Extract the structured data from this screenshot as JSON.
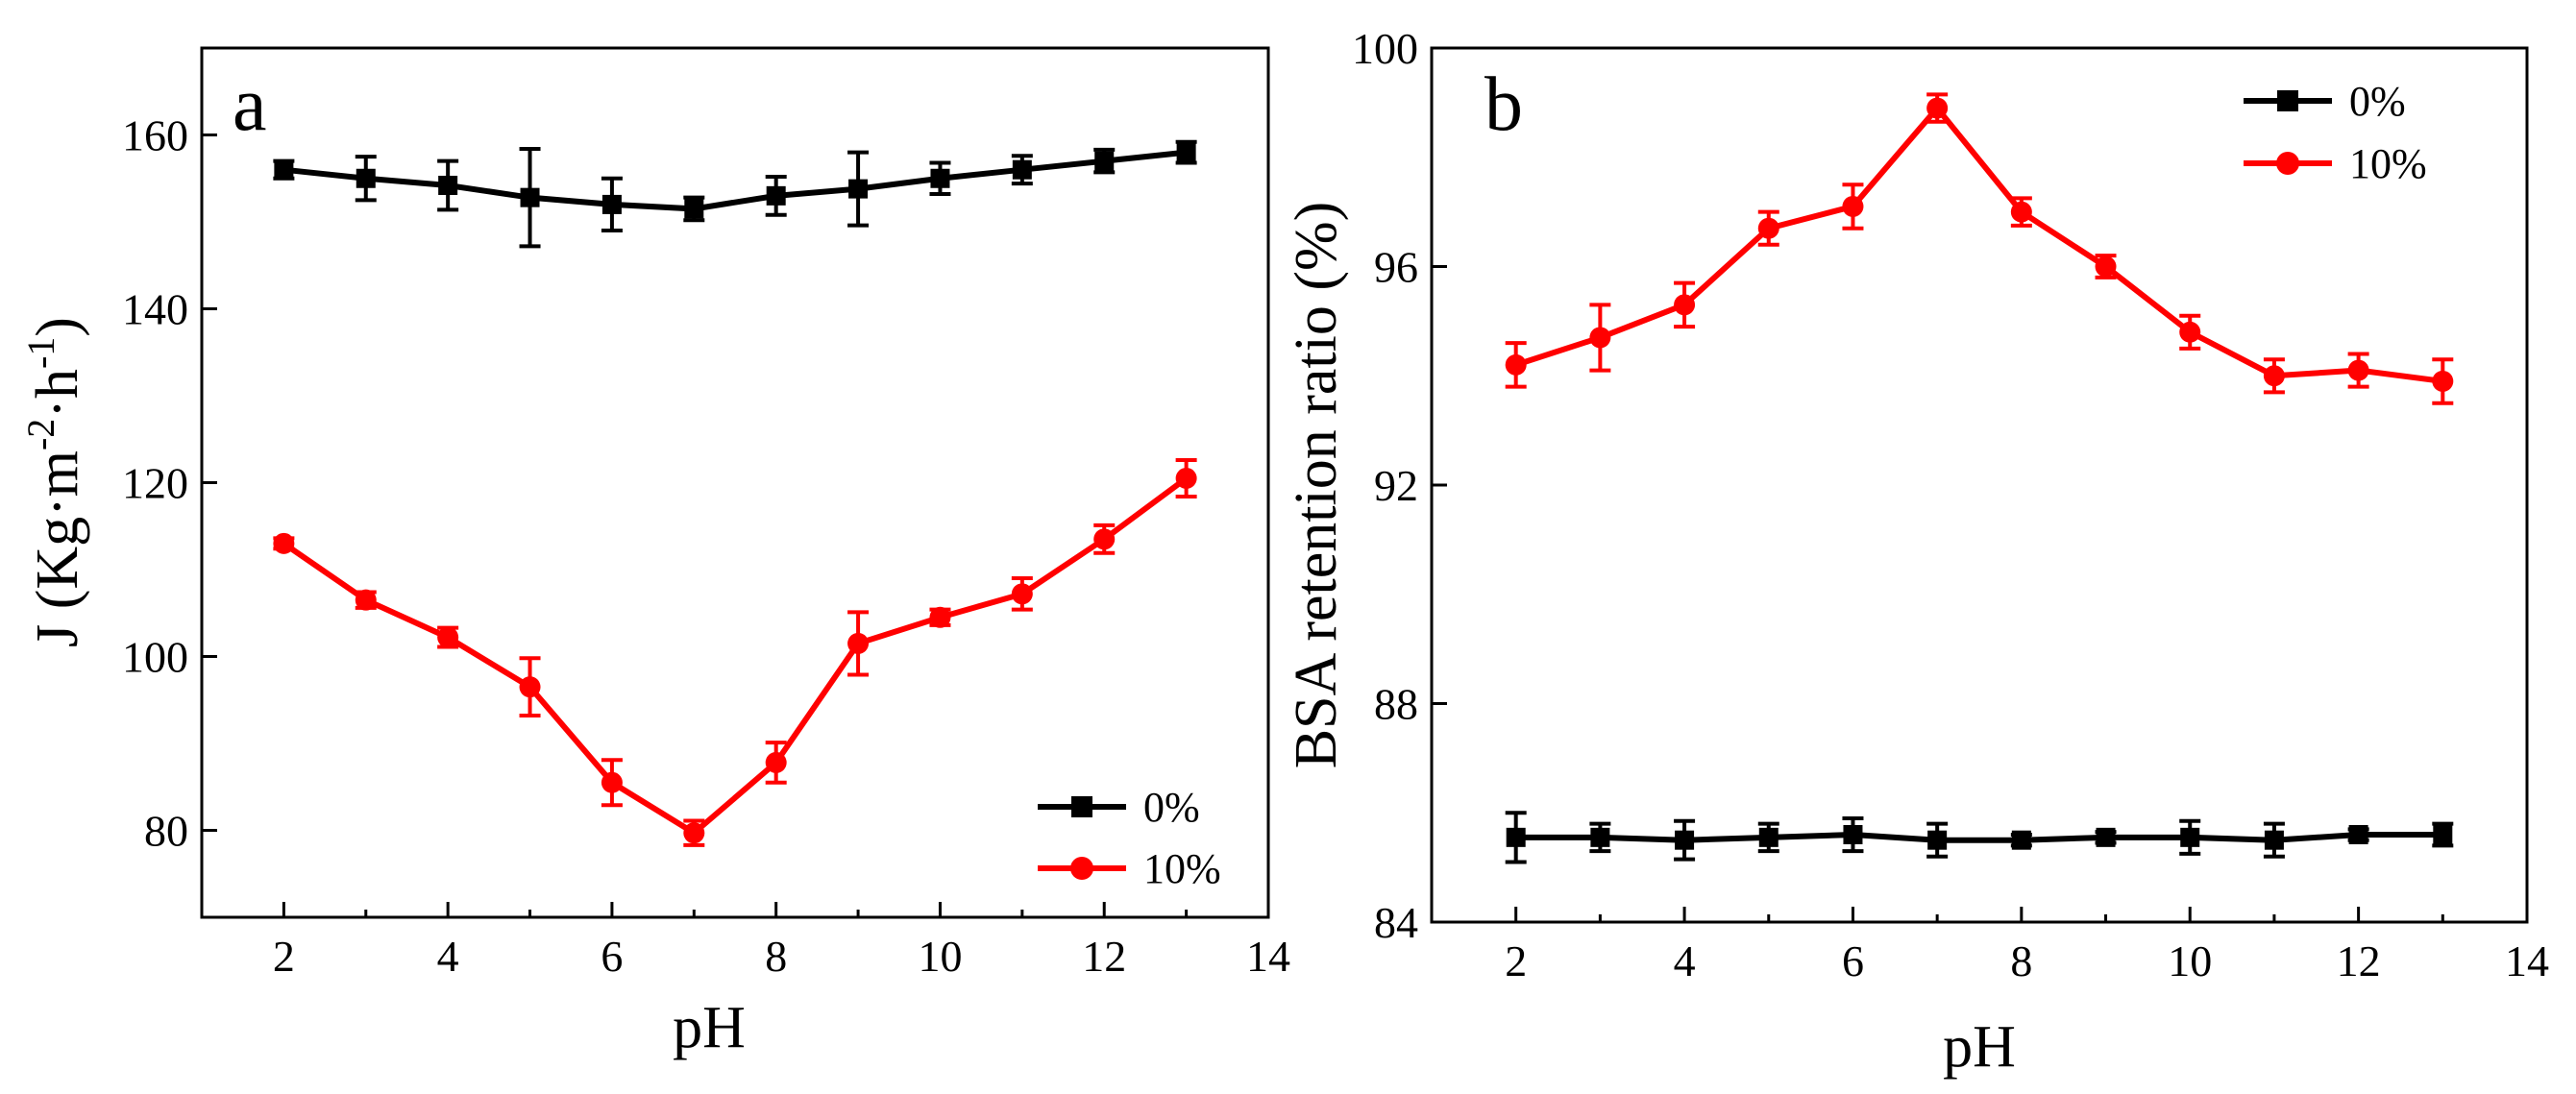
{
  "colors": {
    "series_0": "#000000",
    "series_10": "#ff0000"
  },
  "chart_data": [
    {
      "type": "line",
      "panel_label": "a",
      "xlabel": "pH",
      "ylabel_main": "J (Kg·m",
      "ylabel_sup1": "-2",
      "ylabel_mid": "·h",
      "ylabel_sup2": "-1",
      "ylabel_end": ")",
      "xlim": [
        1,
        14
      ],
      "ylim": [
        70,
        170
      ],
      "xticks": [
        2,
        4,
        6,
        8,
        10,
        12,
        14
      ],
      "yticks": [
        80,
        100,
        120,
        140,
        160
      ],
      "legend_position": "bottom-right",
      "series": [
        {
          "name": "0%",
          "marker": "square",
          "color": "#000000",
          "x": [
            2,
            3,
            4,
            5,
            6,
            7,
            8,
            9,
            10,
            11,
            12,
            13
          ],
          "y": [
            156,
            155,
            154.2,
            152.8,
            152,
            151.5,
            153,
            153.8,
            155,
            156,
            157,
            158
          ],
          "err": [
            1,
            2.5,
            2.8,
            5.6,
            3,
            1.3,
            2.2,
            4.2,
            1.8,
            1.6,
            1.3,
            1.2
          ]
        },
        {
          "name": "10%",
          "marker": "circle",
          "color": "#ff0000",
          "x": [
            2,
            3,
            4,
            5,
            6,
            7,
            8,
            9,
            10,
            11,
            12,
            13
          ],
          "y": [
            113,
            106.5,
            102.2,
            96.5,
            85.5,
            79.7,
            87.8,
            101.5,
            104.5,
            107.2,
            113.5,
            120.5
          ],
          "err": [
            0.6,
            0.9,
            1.1,
            3.3,
            2.6,
            1.4,
            2.3,
            3.6,
            0.9,
            1.8,
            1.6,
            2.1
          ]
        }
      ]
    },
    {
      "type": "line",
      "panel_label": "b",
      "xlabel": "pH",
      "ylabel": "BSA retention ratio (%)",
      "xlim": [
        1,
        14
      ],
      "ylim": [
        84,
        100
      ],
      "xticks": [
        2,
        4,
        6,
        8,
        10,
        12,
        14
      ],
      "yticks": [
        84,
        88,
        92,
        96,
        100
      ],
      "legend_position": "top-right",
      "series": [
        {
          "name": "0%",
          "marker": "square",
          "color": "#000000",
          "x": [
            2,
            3,
            4,
            5,
            6,
            7,
            8,
            9,
            10,
            11,
            12,
            13
          ],
          "y": [
            85.55,
            85.55,
            85.5,
            85.55,
            85.6,
            85.5,
            85.5,
            85.55,
            85.55,
            85.5,
            85.6,
            85.6
          ],
          "err": [
            0.45,
            0.25,
            0.35,
            0.25,
            0.3,
            0.3,
            0.1,
            0.1,
            0.3,
            0.3,
            0.1,
            0.2
          ]
        },
        {
          "name": "10%",
          "marker": "circle",
          "color": "#ff0000",
          "x": [
            2,
            3,
            4,
            5,
            6,
            7,
            8,
            9,
            10,
            11,
            12,
            13
          ],
          "y": [
            94.2,
            94.7,
            95.3,
            96.7,
            97.1,
            98.9,
            97,
            96,
            94.8,
            94,
            94.1,
            93.9
          ],
          "err": [
            0.4,
            0.6,
            0.4,
            0.3,
            0.4,
            0.25,
            0.25,
            0.2,
            0.3,
            0.3,
            0.3,
            0.4
          ]
        }
      ]
    }
  ]
}
